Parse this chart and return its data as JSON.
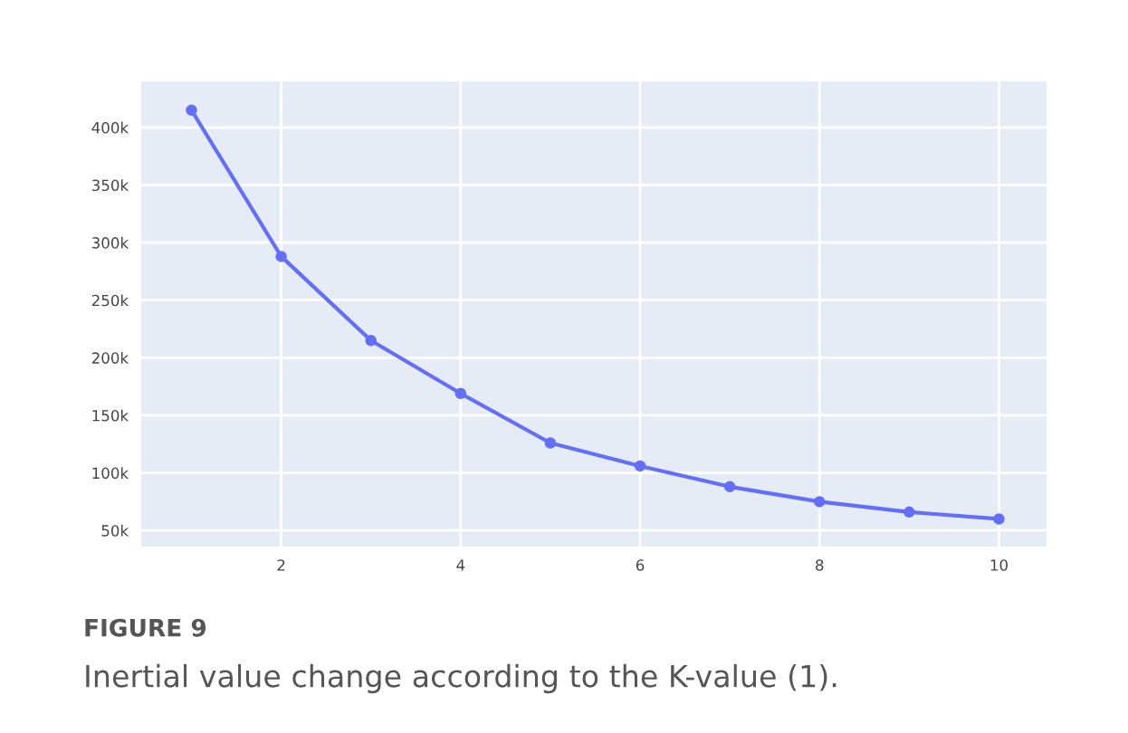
{
  "chart_data": {
    "type": "line",
    "x": [
      1,
      2,
      3,
      4,
      5,
      6,
      7,
      8,
      9,
      10
    ],
    "series": [
      {
        "color": "#636efa",
        "values": [
          415000,
          288000,
          215000,
          169000,
          126000,
          106000,
          88000,
          75000,
          66000,
          60000
        ]
      }
    ],
    "marker": "circle",
    "line_style": "solid",
    "grid": true,
    "xlim": [
      0.44,
      10.53
    ],
    "xticks": [
      2,
      4,
      6,
      8,
      10
    ],
    "ylim": [
      36000,
      440000
    ],
    "yticks": [
      {
        "value": 50000,
        "label": "50k"
      },
      {
        "value": 100000,
        "label": "100k"
      },
      {
        "value": 150000,
        "label": "150k"
      },
      {
        "value": 200000,
        "label": "200k"
      },
      {
        "value": 250000,
        "label": "250k"
      },
      {
        "value": 300000,
        "label": "300k"
      },
      {
        "value": 350000,
        "label": "350k"
      },
      {
        "value": 400000,
        "label": "400k"
      }
    ],
    "annotations": [
      "FIGURE 9",
      "Inertial value change according to the K-value (1)."
    ]
  }
}
